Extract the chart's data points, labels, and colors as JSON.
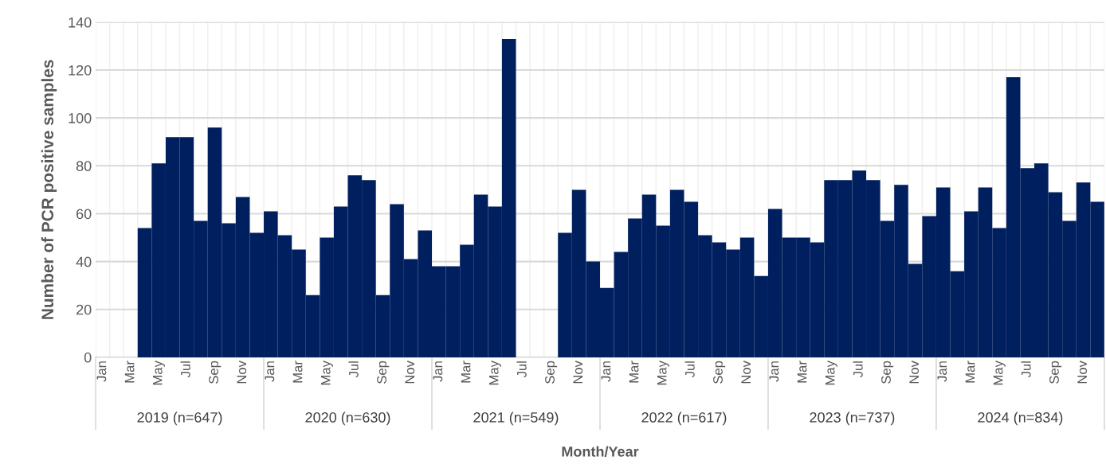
{
  "chart_data": {
    "type": "bar",
    "xlabel": "Month/Year",
    "ylabel": "Number of PCR positive samples",
    "categories": [
      "Jan",
      null,
      "Mar",
      null,
      "May",
      null,
      "Jul",
      null,
      "Sep",
      null,
      "Nov",
      null,
      "Jan",
      null,
      "Mar",
      null,
      "May",
      null,
      "Jul",
      null,
      "Sep",
      null,
      "Nov",
      null,
      "Jan",
      null,
      "Mar",
      null,
      "May",
      null,
      "Jul",
      null,
      "Sep",
      null,
      "Nov",
      null,
      "Jan",
      null,
      "Mar",
      null,
      "May",
      null,
      "Jul",
      null,
      "Sep",
      null,
      "Nov",
      null,
      "Jan",
      null,
      "Mar",
      null,
      "May",
      null,
      "Jul",
      null,
      "Sep",
      null,
      "Nov",
      null,
      "Jan",
      null,
      "Mar",
      null,
      "May",
      null,
      "Jul",
      null,
      "Sep",
      null,
      "Nov",
      null
    ],
    "values": [
      null,
      null,
      null,
      54,
      81,
      92,
      92,
      57,
      96,
      56,
      67,
      52,
      61,
      51,
      45,
      26,
      50,
      63,
      76,
      74,
      26,
      64,
      41,
      53,
      38,
      38,
      47,
      68,
      63,
      133,
      null,
      null,
      null,
      52,
      70,
      40,
      29,
      44,
      58,
      68,
      55,
      70,
      65,
      51,
      48,
      45,
      50,
      34,
      62,
      50,
      50,
      48,
      74,
      74,
      78,
      74,
      57,
      72,
      39,
      59,
      71,
      36,
      61,
      71,
      54,
      117,
      79,
      81,
      69,
      57,
      73,
      65
    ],
    "color": "#001f5f",
    "ylim": [
      0,
      140
    ],
    "yticks": [
      0,
      20,
      40,
      60,
      80,
      100,
      120,
      140
    ],
    "grid": true,
    "annotations": [
      "2019 (n=647)",
      "2020 (n=630)",
      "2021 (n=549)",
      "2022 (n=617)",
      "2023 (n=737)",
      "2024 (n=834)"
    ]
  }
}
